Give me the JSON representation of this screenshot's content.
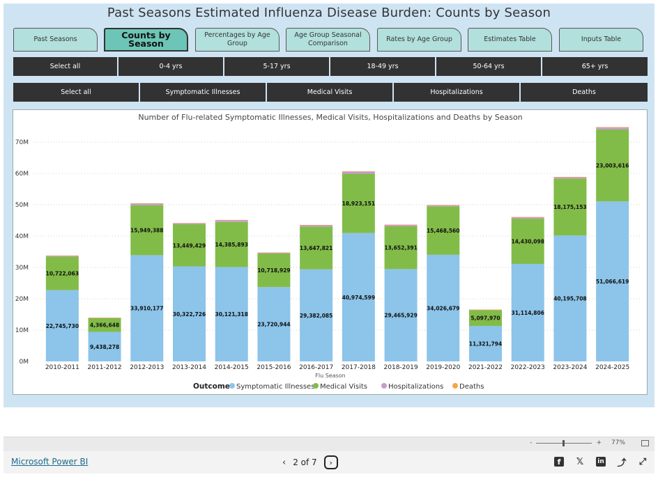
{
  "report": {
    "title": "Past Seasons Estimated Influenza Disease Burden: Counts by Season",
    "background": "#cfe4f3"
  },
  "tabs": [
    {
      "label": "Past Seasons",
      "active": false
    },
    {
      "label": "Counts by Season",
      "active": true
    },
    {
      "label": "Percentages by Age Group",
      "active": false
    },
    {
      "label": "Age Group Seasonal Comparison",
      "active": false
    },
    {
      "label": "Rates by Age Group",
      "active": false
    },
    {
      "label": "Estimates Table",
      "active": false
    },
    {
      "label": "Inputs Table",
      "active": false
    }
  ],
  "age_slicer": [
    "Select all",
    "0-4 yrs",
    "5-17 yrs",
    "18-49 yrs",
    "50-64 yrs",
    "65+ yrs"
  ],
  "outcome_slicer": [
    "Select all",
    "Symptomatic Illnesses",
    "Medical Visits",
    "Hospitalizations",
    "Deaths"
  ],
  "chart_data": {
    "type": "bar",
    "stacked": true,
    "title": "Number of Flu-related Symptomatic Illnesses, Medical Visits, Hospitalizations and Deaths by Season",
    "xlabel": "Flu Season",
    "ylabel": "",
    "ylim": [
      0,
      70000000
    ],
    "yticks": [
      "0M",
      "10M",
      "20M",
      "30M",
      "40M",
      "50M",
      "60M",
      "70M"
    ],
    "grid": true,
    "legend_title": "Outcome",
    "legend_position": "bottom",
    "categories": [
      "2010-2011",
      "2011-2012",
      "2012-2013",
      "2013-2014",
      "2014-2015",
      "2015-2016",
      "2016-2017",
      "2017-2018",
      "2018-2019",
      "2019-2020",
      "2021-2022",
      "2022-2023",
      "2023-2024",
      "2024-2025"
    ],
    "series": [
      {
        "name": "Symptomatic Illnesses",
        "color": "#8cc4ea",
        "values": [
          22745730,
          9438278,
          33910177,
          30322726,
          30121318,
          23720944,
          29382085,
          40974599,
          29465929,
          34026679,
          11321794,
          31114806,
          40195708,
          51066619
        ],
        "labels": [
          "22,745,730",
          "9,438,278",
          "33,910,177",
          "30,322,726",
          "30,121,318",
          "23,720,944",
          "29,382,085",
          "40,974,599",
          "29,465,929",
          "34,026,679",
          "11,321,794",
          "31,114,806",
          "40,195,708",
          "51,066,619"
        ]
      },
      {
        "name": "Medical Visits",
        "color": "#82bc48",
        "values": [
          10722063,
          4366648,
          15949388,
          13449429,
          14385893,
          10718929,
          13647821,
          18923151,
          13652391,
          15468560,
          5097970,
          14430098,
          18175153,
          23003616
        ],
        "labels": [
          "10,722,063",
          "4,366,648",
          "15,949,388",
          "13,449,429",
          "14,385,893",
          "10,718,929",
          "13,647,821",
          "18,923,151",
          "13,652,391",
          "15,468,560",
          "5,097,970",
          "14,430,098",
          "18,175,153",
          "23,003,616"
        ]
      },
      {
        "name": "Hospitalizations",
        "color": "#c89ad0",
        "values": [
          290000,
          140000,
          570000,
          350000,
          590000,
          280000,
          500000,
          710000,
          490000,
          390000,
          100000,
          500000,
          470000,
          650000
        ]
      },
      {
        "name": "Deaths",
        "color": "#f5a54a",
        "values": [
          37000,
          12000,
          43000,
          38000,
          51000,
          23000,
          38000,
          52000,
          34000,
          25000,
          5000,
          27000,
          28000,
          48000
        ]
      }
    ]
  },
  "footer": {
    "zoom_minus": "-",
    "zoom_plus": "+",
    "zoom_level": "77%",
    "powerbi_link": "Microsoft Power BI",
    "page_indicator": "2 of 7",
    "prev": "‹",
    "next": "›",
    "social": [
      "f",
      "𝕏",
      "in",
      "⤴",
      "⤢"
    ]
  }
}
